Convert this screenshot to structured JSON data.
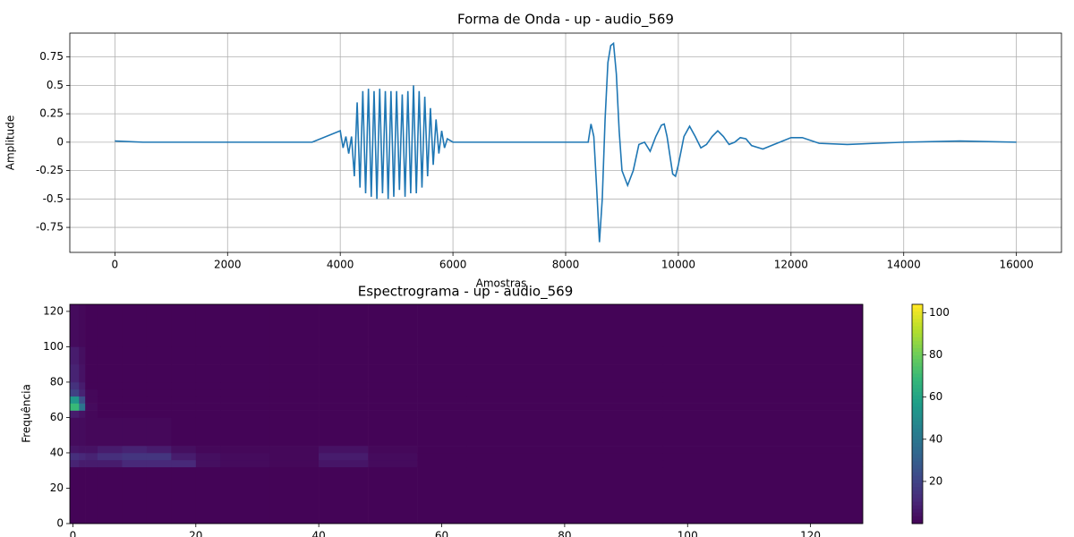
{
  "chart_data": [
    {
      "type": "line",
      "title": "Forma de Onda - up - audio_569",
      "x_label": "Amostras",
      "y_label": "Amplitude",
      "x": [
        0,
        500,
        1000,
        1500,
        2000,
        2500,
        3000,
        3500,
        4000,
        4050,
        4100,
        4150,
        4200,
        4250,
        4300,
        4350,
        4400,
        4450,
        4500,
        4550,
        4600,
        4650,
        4700,
        4750,
        4800,
        4850,
        4900,
        4950,
        5000,
        5050,
        5100,
        5150,
        5200,
        5250,
        5300,
        5350,
        5400,
        5450,
        5500,
        5550,
        5600,
        5650,
        5700,
        5750,
        5800,
        5850,
        5900,
        6000,
        6500,
        7000,
        7500,
        8000,
        8400,
        8450,
        8500,
        8550,
        8600,
        8650,
        8700,
        8750,
        8800,
        8850,
        8900,
        8950,
        9000,
        9100,
        9200,
        9300,
        9400,
        9500,
        9600,
        9700,
        9750,
        9800,
        9900,
        9950,
        10000,
        10100,
        10200,
        10300,
        10400,
        10500,
        10600,
        10700,
        10800,
        10900,
        11000,
        11100,
        11200,
        11300,
        11500,
        11700,
        12000,
        12200,
        12500,
        13000,
        13500,
        14000,
        15000,
        16000
      ],
      "series": [
        {
          "name": "waveform",
          "color": "#1f77b4",
          "values": [
            0.01,
            0,
            0,
            0,
            0,
            0,
            0,
            0,
            0.1,
            -0.05,
            0.05,
            -0.1,
            0.05,
            -0.3,
            0.35,
            -0.4,
            0.45,
            -0.45,
            0.47,
            -0.48,
            0.45,
            -0.5,
            0.47,
            -0.45,
            0.45,
            -0.5,
            0.45,
            -0.48,
            0.45,
            -0.42,
            0.42,
            -0.48,
            0.45,
            -0.45,
            0.5,
            -0.45,
            0.45,
            -0.4,
            0.4,
            -0.3,
            0.3,
            -0.2,
            0.2,
            -0.1,
            0.1,
            -0.05,
            0.03,
            0,
            0,
            0,
            0,
            0,
            0,
            0.16,
            0.05,
            -0.4,
            -0.88,
            -0.5,
            0.2,
            0.7,
            0.85,
            0.87,
            0.6,
            0.1,
            -0.25,
            -0.38,
            -0.25,
            -0.02,
            0,
            -0.08,
            0.05,
            0.15,
            0.16,
            0.05,
            -0.28,
            -0.3,
            -0.2,
            0.05,
            0.14,
            0.05,
            -0.05,
            -0.02,
            0.05,
            0.1,
            0.05,
            -0.02,
            0,
            0.04,
            0.03,
            -0.03,
            -0.06,
            -0.02,
            0.04,
            0.04,
            -0.01,
            -0.02,
            -0.01,
            0,
            0.01,
            0
          ]
        }
      ],
      "xlim": [
        -800,
        16800
      ],
      "xticks": [
        0,
        2000,
        4000,
        6000,
        8000,
        10000,
        12000,
        14000,
        16000
      ],
      "ylim": [
        -0.97,
        0.96
      ],
      "yticks": [
        -0.75,
        -0.5,
        -0.25,
        0,
        0.25,
        0.5,
        0.75
      ],
      "grid": true
    },
    {
      "type": "heatmap",
      "title": "Espectrograma - up - audio_569",
      "y_label": "Frequência",
      "colormap": "viridis",
      "xbins": [
        -0.5,
        1,
        2,
        4,
        8,
        12,
        16,
        20,
        24,
        32,
        40,
        48,
        56,
        64,
        96,
        128.5
      ],
      "ybins": [
        0,
        32,
        36,
        40,
        44,
        60,
        64,
        68,
        72,
        76,
        80,
        90,
        100,
        124
      ],
      "values": [
        [
          1,
          1,
          1,
          1,
          1,
          1,
          1,
          1,
          1,
          1,
          1,
          1,
          1,
          1,
          1
        ],
        [
          10,
          8,
          8,
          8,
          12,
          12,
          12,
          4,
          3,
          2,
          6,
          3,
          1,
          1,
          1
        ],
        [
          14,
          12,
          10,
          14,
          16,
          16,
          8,
          4,
          3,
          2,
          8,
          3,
          1,
          1,
          1
        ],
        [
          6,
          5,
          5,
          8,
          10,
          8,
          4,
          2,
          2,
          2,
          5,
          2,
          1,
          1,
          1
        ],
        [
          3,
          3,
          2,
          2,
          2,
          2,
          1,
          1,
          1,
          1,
          1,
          1,
          1,
          1,
          1
        ],
        [
          8,
          5,
          2,
          1,
          1,
          1,
          1,
          1,
          1,
          1,
          1,
          1,
          1,
          1,
          1
        ],
        [
          70,
          40,
          3,
          1,
          1,
          1,
          1,
          1,
          1,
          1,
          1,
          1,
          1,
          1,
          1
        ],
        [
          55,
          25,
          2,
          1,
          1,
          1,
          1,
          1,
          1,
          1,
          1,
          1,
          1,
          1,
          1
        ],
        [
          20,
          10,
          2,
          1,
          1,
          1,
          1,
          1,
          1,
          1,
          1,
          1,
          1,
          1,
          1
        ],
        [
          15,
          8,
          1,
          1,
          1,
          1,
          1,
          1,
          1,
          1,
          1,
          1,
          1,
          1,
          1
        ],
        [
          10,
          5,
          1,
          1,
          1,
          1,
          1,
          1,
          1,
          1,
          1,
          1,
          1,
          1,
          1
        ],
        [
          8,
          4,
          1,
          1,
          1,
          1,
          1,
          1,
          1,
          1,
          1,
          1,
          1,
          1,
          1
        ],
        [
          3,
          2,
          1,
          1,
          1,
          1,
          1,
          1,
          1,
          1,
          1,
          1,
          1,
          1,
          1
        ]
      ],
      "xlim": [
        -0.5,
        128.5
      ],
      "xticks": [
        0,
        20,
        40,
        60,
        80,
        100,
        120
      ],
      "ylim": [
        0,
        124
      ],
      "yticks": [
        0,
        20,
        40,
        60,
        80,
        100,
        120
      ],
      "clim": [
        0,
        104
      ],
      "cticks": [
        20,
        40,
        60,
        80,
        100
      ]
    }
  ]
}
